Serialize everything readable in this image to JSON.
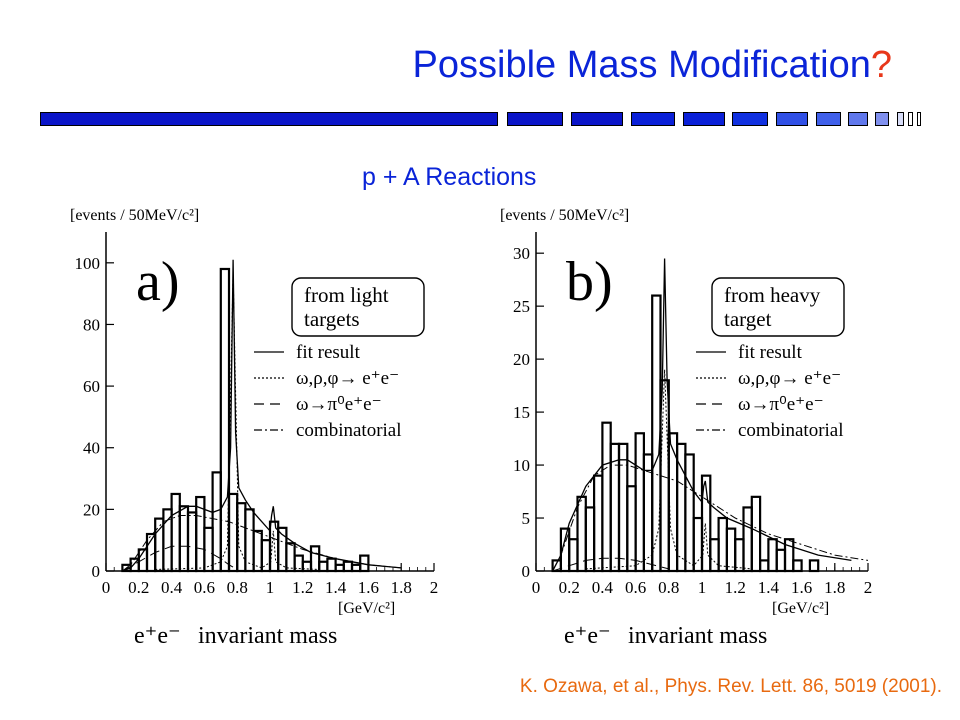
{
  "slide": {
    "title_main": "Possible Mass Modification",
    "title_mark": "?",
    "subtitle": "p + A Reactions",
    "citation": "K. Ozawa, et al., Phys. Rev. Lett. 86, 5019 (2001)."
  },
  "colors": {
    "title": "#0a24d8",
    "accent": "#e8371a",
    "citation": "#e86a10",
    "bar_dark": "#0a14c8",
    "bar_light": "#8090ee"
  },
  "chart_data": [
    {
      "type": "histogram",
      "panel_label": "a)",
      "ylabel": "[events / 50MeV/c²]",
      "xunit": "[GeV/c²]",
      "xlabel_particles": "e⁺e⁻",
      "xlabel_text": "invariant mass",
      "box_label": [
        "from light",
        "targets"
      ],
      "legend": [
        "fit result",
        "ω,ρ,φ→ e⁺e⁻",
        "ω→π⁰e⁺e⁻",
        "combinatorial"
      ],
      "xlim": [
        0,
        2
      ],
      "ylim": [
        0,
        110
      ],
      "xticks": [
        0,
        0.2,
        0.4,
        0.6,
        0.8,
        1,
        1.2,
        1.4,
        1.6,
        1.8,
        2
      ],
      "xtick_labels": [
        "0",
        "0.2",
        "0.4",
        "0.6",
        "0.8",
        "1",
        "1.2",
        "1.4",
        "1.6",
        "1.8",
        "2"
      ],
      "yticks": [
        0,
        20,
        40,
        60,
        80,
        100
      ],
      "ytick_labels": [
        "0",
        "20",
        "40",
        "60",
        "80",
        "100"
      ],
      "bin_edges": [
        0.1,
        0.15,
        0.2,
        0.25,
        0.3,
        0.35,
        0.4,
        0.45,
        0.5,
        0.55,
        0.6,
        0.65,
        0.7,
        0.75,
        0.8,
        0.85,
        0.9,
        0.95,
        1.0,
        1.05,
        1.1,
        1.15,
        1.2,
        1.25,
        1.3,
        1.35,
        1.4,
        1.45,
        1.5,
        1.55,
        1.6,
        1.65
      ],
      "counts": [
        2,
        4,
        7,
        12,
        17,
        20,
        25,
        21,
        19,
        24,
        14,
        32,
        98,
        25,
        22,
        20,
        13,
        10,
        16,
        14,
        9,
        5,
        3,
        8,
        3,
        4,
        2,
        3,
        2,
        5,
        0
      ],
      "fit_curve": [
        [
          0.1,
          0
        ],
        [
          0.15,
          1
        ],
        [
          0.2,
          4
        ],
        [
          0.3,
          12
        ],
        [
          0.4,
          18
        ],
        [
          0.5,
          21
        ],
        [
          0.55,
          21
        ],
        [
          0.6,
          20
        ],
        [
          0.65,
          19
        ],
        [
          0.7,
          20
        ],
        [
          0.74,
          24
        ],
        [
          0.76,
          40
        ],
        [
          0.775,
          101
        ],
        [
          0.79,
          45
        ],
        [
          0.81,
          27
        ],
        [
          0.85,
          23
        ],
        [
          0.9,
          19
        ],
        [
          0.95,
          16
        ],
        [
          1.0,
          13
        ],
        [
          1.01,
          18
        ],
        [
          1.02,
          21
        ],
        [
          1.035,
          14
        ],
        [
          1.07,
          12
        ],
        [
          1.15,
          9
        ],
        [
          1.25,
          6
        ],
        [
          1.4,
          4
        ],
        [
          1.6,
          2
        ],
        [
          1.8,
          1
        ]
      ],
      "vector_meson_curve": [
        [
          0.3,
          0.5
        ],
        [
          0.6,
          1
        ],
        [
          0.7,
          3
        ],
        [
          0.74,
          8
        ],
        [
          0.775,
          97
        ],
        [
          0.81,
          8
        ],
        [
          0.85,
          3
        ],
        [
          0.95,
          1
        ],
        [
          1.005,
          3
        ],
        [
          1.02,
          13
        ],
        [
          1.035,
          3
        ],
        [
          1.1,
          1
        ],
        [
          1.3,
          0.5
        ]
      ],
      "dalitz_curve": [
        [
          0.1,
          0
        ],
        [
          0.2,
          3
        ],
        [
          0.3,
          6
        ],
        [
          0.4,
          8
        ],
        [
          0.5,
          8
        ],
        [
          0.6,
          7
        ],
        [
          0.7,
          4
        ],
        [
          0.75,
          2
        ],
        [
          0.8,
          0.5
        ]
      ],
      "combinatorial_curve": [
        [
          0.1,
          0
        ],
        [
          0.15,
          2
        ],
        [
          0.25,
          10
        ],
        [
          0.35,
          16
        ],
        [
          0.45,
          18
        ],
        [
          0.55,
          18
        ],
        [
          0.65,
          17
        ],
        [
          0.75,
          16
        ],
        [
          0.85,
          14
        ],
        [
          1.0,
          11
        ],
        [
          1.2,
          7
        ],
        [
          1.4,
          4
        ],
        [
          1.6,
          2
        ],
        [
          1.8,
          1
        ]
      ]
    },
    {
      "type": "histogram",
      "panel_label": "b)",
      "ylabel": "[events / 50MeV/c²]",
      "xunit": "[GeV/c²]",
      "xlabel_particles": "e⁺e⁻",
      "xlabel_text": "invariant mass",
      "box_label": [
        "from heavy",
        "target"
      ],
      "legend": [
        "fit result",
        "ω,ρ,φ→ e⁺e⁻",
        "ω→π⁰e⁺e⁻",
        "combinatorial"
      ],
      "xlim": [
        0,
        2
      ],
      "ylim": [
        0,
        32
      ],
      "xticks": [
        0,
        0.2,
        0.4,
        0.6,
        0.8,
        1,
        1.2,
        1.4,
        1.6,
        1.8,
        2
      ],
      "xtick_labels": [
        "0",
        "0.2",
        "0.4",
        "0.6",
        "0.8",
        "1",
        "1.2",
        "1.4",
        "1.6",
        "1.8",
        "2"
      ],
      "yticks": [
        0,
        5,
        10,
        15,
        20,
        25,
        30
      ],
      "ytick_labels": [
        "0",
        "5",
        "10",
        "15",
        "20",
        "25",
        "30"
      ],
      "bin_edges": [
        0.1,
        0.15,
        0.2,
        0.25,
        0.3,
        0.35,
        0.4,
        0.45,
        0.5,
        0.55,
        0.6,
        0.65,
        0.7,
        0.75,
        0.8,
        0.85,
        0.9,
        0.95,
        1.0,
        1.05,
        1.1,
        1.15,
        1.2,
        1.25,
        1.3,
        1.35,
        1.4,
        1.45,
        1.5,
        1.55,
        1.6,
        1.65,
        1.7
      ],
      "counts": [
        1,
        4,
        3,
        7,
        6,
        9,
        14,
        12,
        12,
        8,
        13,
        11,
        26,
        18,
        13,
        12,
        11,
        5,
        9,
        3,
        5,
        4,
        3,
        6,
        7,
        1,
        3,
        2,
        3,
        1,
        0,
        1
      ],
      "fit_curve": [
        [
          0.1,
          0
        ],
        [
          0.15,
          1.5
        ],
        [
          0.2,
          4.5
        ],
        [
          0.3,
          8
        ],
        [
          0.4,
          10
        ],
        [
          0.5,
          10.5
        ],
        [
          0.55,
          10.5
        ],
        [
          0.6,
          10
        ],
        [
          0.65,
          9.5
        ],
        [
          0.7,
          9.5
        ],
        [
          0.74,
          11
        ],
        [
          0.76,
          17
        ],
        [
          0.775,
          29.5
        ],
        [
          0.79,
          18
        ],
        [
          0.81,
          12
        ],
        [
          0.85,
          10.5
        ],
        [
          0.9,
          9
        ],
        [
          0.95,
          7.5
        ],
        [
          1.0,
          6.5
        ],
        [
          1.01,
          8
        ],
        [
          1.02,
          8.5
        ],
        [
          1.035,
          6.5
        ],
        [
          1.07,
          6
        ],
        [
          1.15,
          5
        ],
        [
          1.3,
          4
        ],
        [
          1.5,
          2.5
        ],
        [
          1.7,
          1.5
        ],
        [
          1.9,
          1
        ]
      ],
      "vector_meson_curve": [
        [
          0.3,
          0.2
        ],
        [
          0.6,
          0.5
        ],
        [
          0.7,
          1.5
        ],
        [
          0.74,
          4
        ],
        [
          0.775,
          19
        ],
        [
          0.81,
          4
        ],
        [
          0.85,
          1.5
        ],
        [
          0.95,
          0.5
        ],
        [
          1.005,
          1.5
        ],
        [
          1.02,
          4.5
        ],
        [
          1.035,
          1.5
        ],
        [
          1.1,
          0.5
        ],
        [
          1.3,
          0.2
        ]
      ],
      "dalitz_curve": [
        [
          0.1,
          0
        ],
        [
          0.2,
          0.5
        ],
        [
          0.3,
          1
        ],
        [
          0.4,
          1.2
        ],
        [
          0.5,
          1.2
        ],
        [
          0.6,
          1
        ],
        [
          0.7,
          0.6
        ],
        [
          0.8,
          0.2
        ]
      ],
      "combinatorial_curve": [
        [
          0.1,
          0
        ],
        [
          0.15,
          1.5
        ],
        [
          0.25,
          6
        ],
        [
          0.35,
          9
        ],
        [
          0.45,
          10
        ],
        [
          0.55,
          10
        ],
        [
          0.65,
          9.5
        ],
        [
          0.75,
          9
        ],
        [
          0.85,
          8.5
        ],
        [
          1.0,
          7
        ],
        [
          1.2,
          5
        ],
        [
          1.4,
          3.5
        ],
        [
          1.6,
          2.5
        ],
        [
          1.8,
          1.5
        ],
        [
          2.0,
          1
        ]
      ]
    }
  ]
}
